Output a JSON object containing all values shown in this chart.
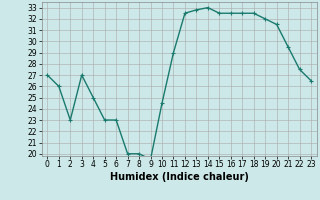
{
  "x": [
    0,
    1,
    2,
    3,
    4,
    5,
    6,
    7,
    8,
    9,
    10,
    11,
    12,
    13,
    14,
    15,
    16,
    17,
    18,
    19,
    20,
    21,
    22,
    23
  ],
  "y": [
    27,
    26,
    23,
    27,
    25,
    23,
    23,
    20,
    20,
    19.5,
    24.5,
    29,
    32.5,
    32.8,
    33,
    32.5,
    32.5,
    32.5,
    32.5,
    32,
    31.5,
    29.5,
    27.5,
    26.5
  ],
  "line_color": "#1a7a6e",
  "marker": "+",
  "marker_size": 3,
  "bg_color": "#cce8e8",
  "grid_color": "#aaaaaa",
  "xlabel": "Humidex (Indice chaleur)",
  "ylim": [
    19.8,
    33.5
  ],
  "xlim": [
    -0.5,
    23.5
  ],
  "yticks": [
    20,
    21,
    22,
    23,
    24,
    25,
    26,
    27,
    28,
    29,
    30,
    31,
    32,
    33
  ],
  "xticks": [
    0,
    1,
    2,
    3,
    4,
    5,
    6,
    7,
    8,
    9,
    10,
    11,
    12,
    13,
    14,
    15,
    16,
    17,
    18,
    19,
    20,
    21,
    22,
    23
  ],
  "tick_fontsize": 5.5,
  "xlabel_fontsize": 7,
  "linewidth": 1.0,
  "marker_edge_width": 0.8
}
